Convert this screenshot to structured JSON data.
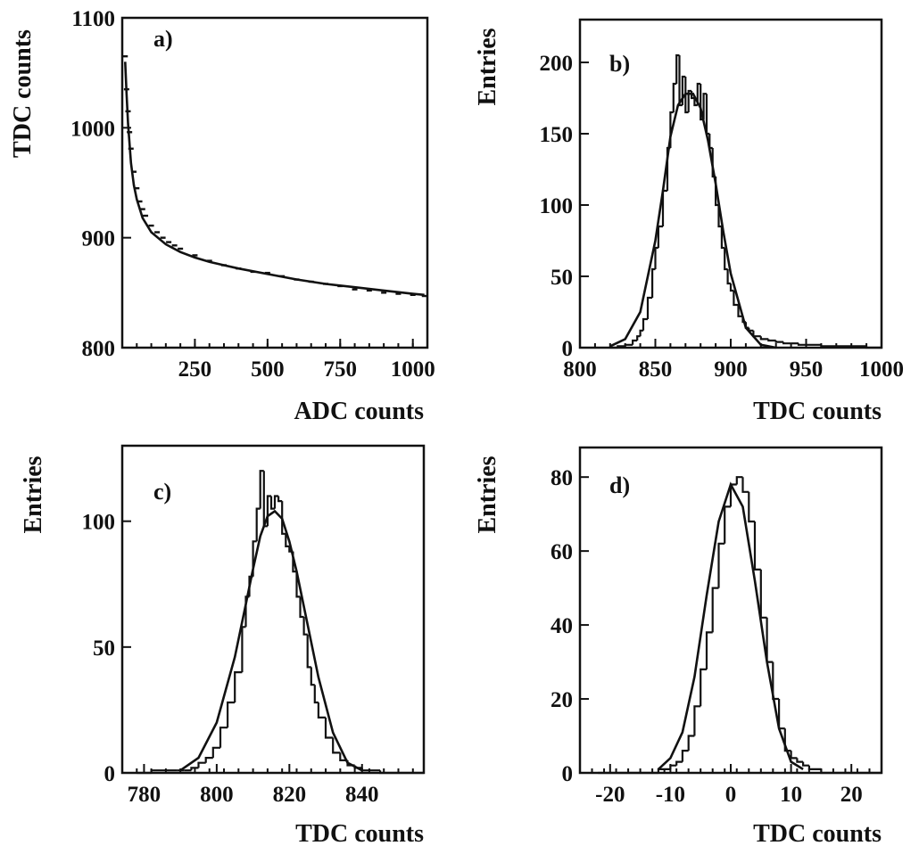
{
  "chart_data": [
    {
      "id": "a",
      "type": "scatter",
      "panel_label": "a)",
      "xlabel": "ADC counts",
      "ylabel": "TDC counts",
      "xlim": [
        0,
        1050
      ],
      "ylim": [
        800,
        1100
      ],
      "xticks": [
        250,
        500,
        750,
        1000
      ],
      "yticks": [
        800,
        900,
        1000,
        1100
      ],
      "x": [
        10,
        15,
        20,
        25,
        30,
        40,
        50,
        60,
        70,
        80,
        100,
        120,
        140,
        160,
        180,
        200,
        250,
        300,
        350,
        400,
        450,
        500,
        550,
        600,
        650,
        700,
        750,
        800,
        850,
        900,
        950,
        1000,
        1040
      ],
      "y": [
        1065,
        1035,
        1015,
        996,
        981,
        960,
        945,
        933,
        926,
        920,
        911,
        905,
        900,
        896,
        893,
        890,
        884,
        879,
        875,
        872,
        869,
        868,
        865,
        862,
        860,
        858,
        856,
        853,
        852,
        850,
        849,
        848,
        847
      ],
      "fit": {
        "x": [
          10,
          15,
          20,
          30,
          40,
          50,
          70,
          100,
          150,
          200,
          250,
          300,
          400,
          500,
          600,
          700,
          800,
          900,
          1000,
          1040
        ],
        "y": [
          1060,
          1030,
          1004,
          968,
          948,
          935,
          918,
          905,
          894,
          887,
          882,
          878,
          872,
          867,
          862,
          858,
          855,
          852,
          849,
          848
        ]
      }
    },
    {
      "id": "b",
      "type": "bar",
      "panel_label": "b)",
      "xlabel": "TDC counts",
      "ylabel": "Entries",
      "xlim": [
        800,
        1000
      ],
      "ylim": [
        0,
        230
      ],
      "xticks": [
        800,
        850,
        900,
        950,
        1000
      ],
      "yticks": [
        0,
        50,
        100,
        150,
        200
      ],
      "x": [
        820,
        825,
        830,
        835,
        838,
        840,
        842,
        845,
        848,
        850,
        852,
        855,
        858,
        860,
        862,
        864,
        866,
        868,
        870,
        872,
        874,
        876,
        878,
        880,
        882,
        884,
        886,
        888,
        890,
        892,
        894,
        896,
        898,
        900,
        902,
        905,
        908,
        910,
        912,
        915,
        920,
        925,
        930,
        935,
        940,
        945,
        950,
        960,
        970,
        980,
        990,
        1000
      ],
      "values": [
        0,
        1,
        2,
        5,
        8,
        12,
        20,
        35,
        55,
        70,
        85,
        110,
        140,
        165,
        185,
        205,
        170,
        190,
        165,
        180,
        175,
        170,
        185,
        160,
        178,
        150,
        140,
        120,
        100,
        85,
        70,
        55,
        45,
        40,
        30,
        22,
        18,
        14,
        12,
        8,
        6,
        5,
        4,
        3,
        3,
        2,
        2,
        1,
        1,
        1,
        0,
        0
      ],
      "fit": {
        "x": [
          820,
          830,
          840,
          850,
          855,
          860,
          865,
          870,
          875,
          880,
          885,
          890,
          895,
          900,
          910,
          920,
          930
        ],
        "y": [
          1,
          6,
          25,
          75,
          110,
          148,
          170,
          178,
          178,
          168,
          145,
          115,
          82,
          52,
          14,
          2,
          0
        ]
      }
    },
    {
      "id": "c",
      "type": "bar",
      "panel_label": "c)",
      "xlabel": "TDC counts",
      "ylabel": "Entries",
      "xlim": [
        774,
        857
      ],
      "ylim": [
        0,
        130
      ],
      "xticks": [
        780,
        800,
        820,
        840
      ],
      "yticks": [
        0,
        50,
        100
      ],
      "x": [
        778,
        782,
        786,
        789,
        791,
        793,
        795,
        797,
        799,
        801,
        803,
        805,
        807,
        808,
        809,
        810,
        811,
        812,
        813,
        814,
        815,
        816,
        817,
        818,
        819,
        820,
        821,
        822,
        823,
        824,
        825,
        826,
        827,
        828,
        830,
        832,
        834,
        836,
        838,
        840,
        845,
        850
      ],
      "values": [
        0,
        1,
        1,
        1,
        1,
        2,
        4,
        6,
        10,
        18,
        28,
        40,
        58,
        70,
        78,
        92,
        105,
        120,
        98,
        110,
        105,
        110,
        108,
        95,
        90,
        88,
        80,
        70,
        62,
        55,
        42,
        35,
        28,
        22,
        14,
        8,
        5,
        3,
        2,
        1,
        0,
        0
      ],
      "fit": {
        "x": [
          790,
          795,
          800,
          805,
          808,
          810,
          812,
          814,
          816,
          818,
          820,
          822,
          825,
          828,
          832,
          836,
          840
        ],
        "y": [
          1,
          6,
          20,
          46,
          67,
          81,
          94,
          102,
          104,
          101,
          92,
          80,
          59,
          38,
          16,
          4,
          1
        ]
      }
    },
    {
      "id": "d",
      "type": "bar",
      "panel_label": "d)",
      "xlabel": "TDC counts",
      "ylabel": "Entries",
      "xlim": [
        -25,
        25
      ],
      "ylim": [
        0,
        88
      ],
      "xticks": [
        -20,
        -10,
        0,
        10,
        20
      ],
      "yticks": [
        0,
        20,
        40,
        60,
        80
      ],
      "x": [
        -22,
        -15,
        -12,
        -10,
        -9,
        -8,
        -7,
        -6,
        -5,
        -4,
        -3,
        -2,
        -1,
        0,
        1,
        2,
        3,
        4,
        5,
        6,
        7,
        8,
        9,
        10,
        11,
        12,
        13,
        15,
        20
      ],
      "values": [
        0,
        0,
        1,
        2,
        3,
        6,
        10,
        18,
        28,
        38,
        50,
        62,
        72,
        78,
        80,
        76,
        68,
        55,
        42,
        30,
        20,
        12,
        6,
        4,
        3,
        2,
        1,
        0,
        0
      ],
      "fit": {
        "x": [
          -12,
          -10,
          -8,
          -6,
          -4,
          -2,
          0,
          2,
          4,
          6,
          8,
          10,
          12
        ],
        "y": [
          1,
          4,
          11,
          26,
          48,
          68,
          78,
          72,
          52,
          30,
          12,
          3,
          1
        ]
      }
    }
  ]
}
